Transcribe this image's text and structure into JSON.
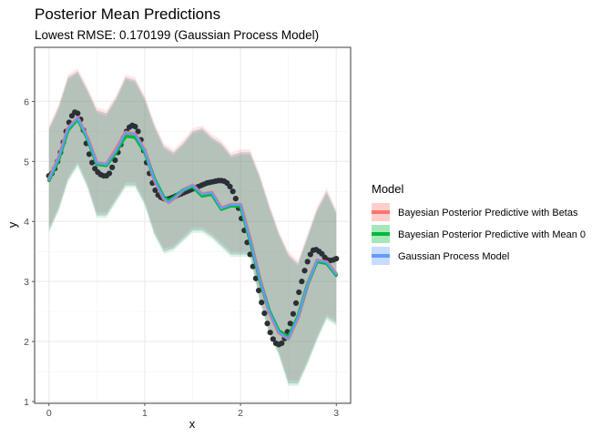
{
  "chart_data": {
    "type": "line",
    "title": "Posterior Mean Predictions",
    "subtitle": "Lowest RMSE: 0.170199 (Gaussian Process Model)",
    "xlabel": "x",
    "ylabel": "y",
    "xlim": [
      -0.15,
      3.15
    ],
    "ylim": [
      0.97,
      6.9
    ],
    "x_ticks": [
      0,
      1,
      2,
      3
    ],
    "y_ticks": [
      1,
      2,
      3,
      4,
      5,
      6
    ],
    "grid": true,
    "legend": {
      "title": "Model",
      "position": "right",
      "entries": [
        {
          "label": "Bayesian Posterior Predictive with Betas",
          "color": "#F8766D"
        },
        {
          "label": "Bayesian Posterior Predictive with Mean 0",
          "color": "#00BA38"
        },
        {
          "label": "Gaussian Process Model",
          "color": "#619CFF"
        }
      ]
    },
    "band_color": "#6e8597",
    "point_color": "#2b2f36",
    "x": [
      0.0,
      0.1,
      0.2,
      0.3,
      0.4,
      0.5,
      0.6,
      0.7,
      0.8,
      0.9,
      1.0,
      1.1,
      1.2,
      1.25,
      1.3,
      1.4,
      1.5,
      1.6,
      1.7,
      1.8,
      1.9,
      2.0,
      2.1,
      2.2,
      2.3,
      2.4,
      2.5,
      2.6,
      2.7,
      2.8,
      2.9,
      3.0
    ],
    "series": [
      {
        "name": "Bayesian Posterior Predictive with Betas",
        "values": [
          4.7,
          5.05,
          5.55,
          5.72,
          5.4,
          4.97,
          4.95,
          5.2,
          5.48,
          5.45,
          5.18,
          4.7,
          4.38,
          4.32,
          4.38,
          4.52,
          4.6,
          4.45,
          4.48,
          4.22,
          4.28,
          4.28,
          3.7,
          3.05,
          2.5,
          2.15,
          2.05,
          2.4,
          2.95,
          3.35,
          3.32,
          3.12
        ]
      },
      {
        "name": "Bayesian Posterior Predictive with Mean 0",
        "values": [
          4.68,
          5.02,
          5.52,
          5.7,
          5.38,
          4.95,
          4.93,
          5.15,
          5.42,
          5.4,
          5.15,
          4.72,
          4.4,
          4.35,
          4.4,
          4.52,
          4.58,
          4.42,
          4.45,
          4.2,
          4.26,
          4.25,
          3.68,
          3.03,
          2.52,
          2.18,
          2.08,
          2.42,
          2.95,
          3.33,
          3.3,
          3.1
        ]
      },
      {
        "name": "Gaussian Process Model",
        "values": [
          4.7,
          5.05,
          5.55,
          5.72,
          5.4,
          4.97,
          4.95,
          5.18,
          5.48,
          5.45,
          5.18,
          4.7,
          4.38,
          4.32,
          4.38,
          4.52,
          4.6,
          4.45,
          4.48,
          4.22,
          4.28,
          4.28,
          3.7,
          3.05,
          2.5,
          2.15,
          2.05,
          2.4,
          2.95,
          3.35,
          3.32,
          3.12
        ]
      }
    ],
    "band": {
      "x": [
        0.0,
        0.1,
        0.2,
        0.3,
        0.4,
        0.5,
        0.6,
        0.7,
        0.8,
        0.9,
        1.0,
        1.1,
        1.2,
        1.3,
        1.4,
        1.5,
        1.6,
        1.7,
        1.8,
        1.9,
        2.0,
        2.1,
        2.2,
        2.3,
        2.4,
        2.5,
        2.6,
        2.7,
        2.8,
        2.9,
        3.0
      ],
      "upper": [
        5.55,
        5.9,
        6.4,
        6.5,
        6.2,
        5.85,
        5.8,
        6.05,
        6.4,
        6.35,
        6.05,
        5.6,
        5.25,
        5.15,
        5.3,
        5.5,
        5.55,
        5.4,
        5.3,
        5.1,
        5.15,
        5.15,
        4.75,
        4.25,
        3.8,
        3.45,
        3.3,
        3.75,
        4.2,
        4.5,
        4.15
      ],
      "lower": [
        3.85,
        4.2,
        4.7,
        4.95,
        4.6,
        4.1,
        4.1,
        4.35,
        4.6,
        4.6,
        4.3,
        3.8,
        3.5,
        3.55,
        3.7,
        3.85,
        3.85,
        3.75,
        3.6,
        3.45,
        3.45,
        3.45,
        2.7,
        2.15,
        1.8,
        1.3,
        1.3,
        1.65,
        2.05,
        2.4,
        2.3
      ]
    },
    "observed": {
      "x": [
        0.0,
        0.03,
        0.06,
        0.09,
        0.12,
        0.15,
        0.18,
        0.21,
        0.24,
        0.27,
        0.3,
        0.33,
        0.36,
        0.39,
        0.42,
        0.45,
        0.48,
        0.51,
        0.54,
        0.57,
        0.6,
        0.63,
        0.66,
        0.69,
        0.72,
        0.75,
        0.78,
        0.81,
        0.84,
        0.87,
        0.9,
        0.93,
        0.96,
        0.99,
        1.02,
        1.05,
        1.08,
        1.11,
        1.14,
        1.17,
        1.2,
        1.23,
        1.26,
        1.29,
        1.32,
        1.35,
        1.38,
        1.41,
        1.44,
        1.47,
        1.5,
        1.53,
        1.56,
        1.59,
        1.62,
        1.65,
        1.68,
        1.71,
        1.74,
        1.77,
        1.8,
        1.83,
        1.86,
        1.89,
        1.92,
        1.95,
        1.98,
        2.01,
        2.04,
        2.07,
        2.1,
        2.13,
        2.16,
        2.19,
        2.22,
        2.25,
        2.28,
        2.31,
        2.34,
        2.37,
        2.4,
        2.43,
        2.46,
        2.49,
        2.52,
        2.55,
        2.58,
        2.61,
        2.64,
        2.67,
        2.7,
        2.73,
        2.76,
        2.79,
        2.82,
        2.85,
        2.88,
        2.91,
        2.94,
        2.97,
        3.0
      ],
      "y": [
        4.76,
        4.8,
        4.88,
        5.0,
        5.15,
        5.32,
        5.5,
        5.65,
        5.76,
        5.82,
        5.8,
        5.7,
        5.52,
        5.3,
        5.12,
        4.98,
        4.88,
        4.82,
        4.78,
        4.76,
        4.76,
        4.8,
        4.9,
        5.02,
        5.15,
        5.28,
        5.4,
        5.5,
        5.57,
        5.6,
        5.58,
        5.5,
        5.36,
        5.18,
        4.98,
        4.8,
        4.64,
        4.52,
        4.44,
        4.4,
        4.38,
        4.37,
        4.38,
        4.4,
        4.42,
        4.44,
        4.46,
        4.48,
        4.5,
        4.52,
        4.54,
        4.56,
        4.58,
        4.6,
        4.62,
        4.64,
        4.65,
        4.66,
        4.67,
        4.68,
        4.68,
        4.67,
        4.64,
        4.58,
        4.5,
        4.38,
        4.22,
        4.05,
        3.85,
        3.65,
        3.45,
        3.25,
        3.05,
        2.85,
        2.65,
        2.47,
        2.3,
        2.15,
        2.04,
        1.97,
        1.95,
        1.97,
        2.05,
        2.16,
        2.3,
        2.46,
        2.64,
        2.82,
        3.0,
        3.18,
        3.33,
        3.45,
        3.52,
        3.53,
        3.5,
        3.46,
        3.4,
        3.36,
        3.35,
        3.36,
        3.38
      ]
    }
  }
}
